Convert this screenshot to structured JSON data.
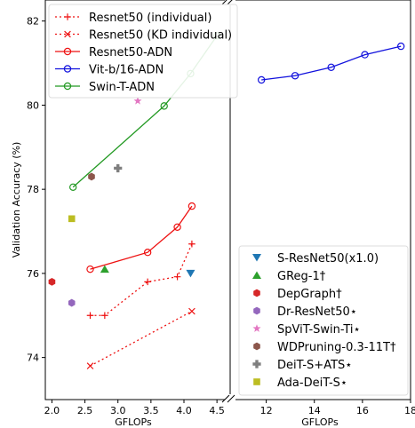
{
  "chart_data": {
    "type": "line",
    "ylabel": "Validation Accuracy (%)",
    "ylim": [
      73.0,
      82.5
    ],
    "yticks": [
      74,
      76,
      78,
      80,
      82
    ],
    "panels": [
      {
        "id": "left",
        "xlabel": "GFLOPs",
        "xlim": [
          1.9,
          4.7
        ],
        "xticks": [
          2.0,
          2.5,
          3.0,
          3.5,
          4.0,
          4.5
        ],
        "xtick_labels": [
          "2.0",
          "2.5",
          "3.0",
          "3.5",
          "4.0",
          "4.5"
        ]
      },
      {
        "id": "right",
        "xlabel": "GFLOPs",
        "xlim": [
          10.5,
          18.0
        ],
        "xticks": [
          12,
          14,
          16,
          18
        ],
        "xtick_labels": [
          "12",
          "14",
          "16",
          "18"
        ]
      }
    ],
    "series": [
      {
        "name": "Resnet50 (individual)",
        "color": "#ee1111",
        "dash": "dotted",
        "marker": "plus",
        "panel": "left",
        "x": [
          2.58,
          2.8,
          3.45,
          3.9,
          4.12
        ],
        "y": [
          75.0,
          75.0,
          75.8,
          75.92,
          76.7
        ]
      },
      {
        "name": "Resnet50 (KD individual)",
        "color": "#ee1111",
        "dash": "dotted",
        "marker": "x",
        "panel": "left",
        "x": [
          2.58,
          4.12
        ],
        "y": [
          73.8,
          75.1
        ]
      },
      {
        "name": "Resnet50-ADN",
        "color": "#ee1111",
        "dash": "solid",
        "marker": "circle",
        "panel": "left",
        "x": [
          2.58,
          3.45,
          3.9,
          4.12
        ],
        "y": [
          76.1,
          76.5,
          77.1,
          77.6
        ]
      },
      {
        "name": "Vit-b/16-ADN",
        "color": "#1111dd",
        "dash": "solid",
        "marker": "circle",
        "panel": "right",
        "x": [
          11.8,
          13.2,
          14.7,
          16.1,
          17.6
        ],
        "y": [
          80.6,
          80.7,
          80.9,
          81.2,
          81.4
        ]
      },
      {
        "name": "Swin-T-ADN",
        "color": "#229922",
        "dash": "solid",
        "marker": "circle",
        "panel": "left",
        "x": [
          2.32,
          3.7,
          4.1,
          4.5
        ],
        "y": [
          78.05,
          79.98,
          80.75,
          81.65
        ]
      }
    ],
    "points": [
      {
        "name": "S-ResNet50(x1.0)",
        "color": "#1f77b4",
        "marker": "tri-down",
        "panel": "left",
        "x": 4.1,
        "y": 76.0
      },
      {
        "name": "GReg-1†",
        "color": "#2ca02c",
        "marker": "tri-up",
        "panel": "left",
        "x": 2.8,
        "y": 76.1
      },
      {
        "name": "DepGraph†",
        "color": "#d62728",
        "marker": "hexagon",
        "panel": "left",
        "x": 2.0,
        "y": 75.8
      },
      {
        "name": "Dr-ResNet50⋆",
        "color": "#9467bd",
        "marker": "hexagon",
        "panel": "left",
        "x": 2.3,
        "y": 75.3
      },
      {
        "name": "SpViT-Swin-Ti⋆",
        "color": "#e377c2",
        "marker": "star",
        "panel": "left",
        "x": 3.3,
        "y": 80.1
      },
      {
        "name": "WDPruning-0.3-11T†",
        "color": "#8c564b",
        "marker": "hexagon",
        "panel": "left",
        "x": 2.6,
        "y": 78.3
      },
      {
        "name": "DeiT-S+ATS⋆",
        "color": "#7f7f7f",
        "marker": "plusfilled",
        "panel": "left",
        "x": 3.0,
        "y": 78.5
      },
      {
        "name": "Ada-DeiT-S⋆",
        "color": "#bcbd22",
        "marker": "square",
        "panel": "left",
        "x": 2.3,
        "y": 77.3
      }
    ],
    "legend_lines_placement": "top-left",
    "legend_points_placement": "bottom-right",
    "grid": false
  }
}
